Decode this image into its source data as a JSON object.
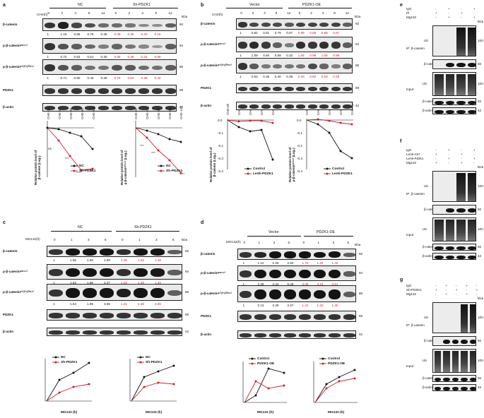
{
  "panels": {
    "a": {
      "label": "a",
      "header": {
        "time": "CHX(h)",
        "kda": "kDa",
        "g1": "NC",
        "g2": "Sh-PDZK1",
        "times": [
          "0",
          "2",
          "4",
          "8",
          "12",
          "0",
          "2",
          "4",
          "8",
          "12"
        ]
      },
      "rows": [
        {
          "name": "β-catenin",
          "kda": "92",
          "vals": [
            "1",
            "1.19",
            "0.85",
            "0.76",
            "0.48"
          ],
          "red": [
            "0.48",
            "0.38",
            "0.20",
            "0.15"
          ]
        },
        {
          "name": "p-β-cateninˢᵉʳ⁵⁵²",
          "kda": "94",
          "vals": [
            "1",
            "0.72",
            "0.62",
            "0.51",
            "0.30"
          ],
          "red": [
            "0.55",
            "0.39",
            "0.22",
            "0.06"
          ]
        },
        {
          "name": "p-β-cateninˢ³³/³⁷/ᵀʰʳ⁴¹",
          "kda": "85",
          "vals": [
            "1",
            "0.71",
            "0.60",
            "0.44",
            "0.39"
          ],
          "red": [
            "0.70",
            "0.64",
            "0.48",
            "0.44"
          ]
        },
        {
          "name": "PDZK1",
          "kda": "59",
          "vals": [],
          "red": []
        },
        {
          "name": "β-actin",
          "kda": "42",
          "vals": [],
          "red": []
        }
      ],
      "xticks": [
        "CHX-0h",
        "CHX-2h",
        "CHX-4h",
        "CHX-8h",
        "CHX-12h"
      ],
      "chart1_ylabel": [
        "Relative protein level of",
        "β-catenin (Log₂)"
      ],
      "chart2_ylabel": [
        "Relative protein level of",
        "p-β-cateninˢᵉʳ⁵⁵² (Log₂)"
      ],
      "legend": [
        "NC",
        "Sh-PDZK1"
      ],
      "stats1": [
        "ns",
        "**",
        "***",
        "****",
        "**"
      ],
      "stats2": [
        "***",
        "***",
        "**",
        "****"
      ]
    },
    "b": {
      "label": "b",
      "header": {
        "time": "CHX(h)",
        "kda": "kDa",
        "g1": "Vector",
        "g2": "PDZK1-OE",
        "times": [
          "0",
          "2",
          "4",
          "8",
          "12",
          "0",
          "2",
          "4",
          "8",
          "12"
        ]
      },
      "rows": [
        {
          "name": "β-catenin",
          "kda": "92",
          "vals": [
            "1",
            "0.82",
            "0.81",
            "0.79",
            "0.67"
          ],
          "red": [
            "0.89",
            "0.88",
            "0.88",
            "0.87"
          ]
        },
        {
          "name": "p-β-cateninˢᵉʳ⁵⁵²",
          "kda": "94",
          "vals": [
            "1",
            "1.09",
            "0.94",
            "0.59",
            "0.32"
          ],
          "red": [
            "1.06",
            "0.98",
            "1.06",
            "0.98"
          ]
        },
        {
          "name": "p-β-cateninˢ³³/³⁷/ᵀʰʳ⁴¹",
          "kda": "85",
          "vals": [
            "1",
            "0.63",
            "0.35",
            "0.40",
            "0.38"
          ],
          "red": [
            "0.40",
            "0.80",
            "0.53",
            "0.29"
          ]
        },
        {
          "name": "PDZK1",
          "kda": "59",
          "vals": [],
          "red": []
        },
        {
          "name": "β-actin",
          "kda": "42",
          "vals": [],
          "red": []
        }
      ],
      "xticks": [
        "CHX-0h",
        "CHX-2h",
        "CHX-4h",
        "CHX-8h",
        "CHX-12h"
      ],
      "legend": [
        "Control",
        "Lenti-PDZK1"
      ],
      "y1ticks": [
        "0.0",
        "-0.1",
        "-0.2",
        "-0.3",
        "-0.4"
      ],
      "y2ticks": [
        "0.0",
        "-0.1",
        "-0.2",
        "-0.3",
        "-0.4"
      ]
    },
    "c": {
      "label": "c",
      "header": {
        "time": "MG132(h)",
        "kda": "kDa",
        "g1": "NC",
        "g2": "Sh-PDZK1",
        "times": [
          "0",
          "1",
          "3",
          "6",
          "0",
          "1",
          "3",
          "6"
        ]
      },
      "rows": [
        {
          "name": "β-catenin",
          "kda": "92",
          "vals": [
            "1",
            "1.56",
            "1.68",
            "1.89"
          ],
          "red": [
            "1.05",
            "1.52",
            "1.46"
          ]
        },
        {
          "name": "p-β-cateninˢᵉʳ⁵⁵²",
          "kda": "94",
          "vals": [
            "1",
            "1.63",
            "1.88",
            "2.07"
          ],
          "red": [
            "1.03",
            "1.39",
            "1.26"
          ]
        },
        {
          "name": "p-β-cateninˢ³³/³⁷/ᵀʰʳ⁴¹",
          "kda": "85",
          "vals": [
            "1",
            "1.64",
            "1.99",
            "3.65"
          ],
          "red": [
            "1.21",
            "2.36",
            "3.96"
          ]
        },
        {
          "name": "PDZK1",
          "kda": "59",
          "vals": [],
          "red": []
        },
        {
          "name": "β-actin",
          "kda": "42",
          "vals": [],
          "red": []
        }
      ],
      "legend": [
        "NC",
        "Sh-PDZK1"
      ],
      "xlabel": "MG132 (h)"
    },
    "d": {
      "label": "d",
      "header": {
        "time": "MG132(h)",
        "kda": "kDa",
        "g1": "Vector",
        "g2": "PDZK1-OE",
        "times": [
          "0",
          "1",
          "3",
          "6",
          "0",
          "1",
          "3",
          "6"
        ]
      },
      "rows": [
        {
          "name": "β-catenin",
          "kda": "92",
          "vals": [
            "1",
            "1.12",
            "2.25",
            "2.84"
          ],
          "red": [
            "1.70",
            "1.34",
            "1.42"
          ]
        },
        {
          "name": "p-β-cateninˢᵉʳ⁵⁵²",
          "kda": "94",
          "vals": [
            "1",
            "2.38",
            "3.34",
            "6.38"
          ],
          "red": [
            "3.08",
            "3.23",
            "3.61"
          ]
        },
        {
          "name": "p-β-cateninˢ³³/³⁷/ᵀʰʳ⁴¹",
          "kda": "85",
          "vals": [
            "1",
            "2.13",
            "2.29",
            "2.67"
          ],
          "red": [
            "1.41",
            "1.32",
            "1.40"
          ]
        },
        {
          "name": "PDZK1",
          "kda": "59",
          "vals": [],
          "red": []
        },
        {
          "name": "β-actin",
          "kda": "42",
          "vals": [],
          "red": []
        }
      ],
      "legend": [
        "Control",
        "PDZK1-OE"
      ],
      "xlabel": "MG132 (h)"
    },
    "e": {
      "label": "e",
      "rows": [
        "IgG",
        "PI",
        "Mg132"
      ],
      "ip": "IP: β-catenin",
      "input": "Input",
      "kda": "kDa"
    },
    "f": {
      "label": "f",
      "rows": [
        "IgG",
        "Lenti-Ctrl",
        "Lenti-Pdzk1",
        "Mg132"
      ],
      "ip": "IP: β-catenin",
      "input": "Input",
      "kda": "kDa"
    },
    "g": {
      "label": "g",
      "rows": [
        "IgG",
        "Sh-PDZK1",
        "Mg132"
      ],
      "ip": "IP: β-catenin",
      "input": "Input",
      "kda": "kDa"
    }
  },
  "blot_labels": {
    "ub": "Ub",
    "bcat": "β-catenin",
    "bact": "β-actin",
    "k100": "100",
    "k92": "92",
    "k42": "42"
  }
}
